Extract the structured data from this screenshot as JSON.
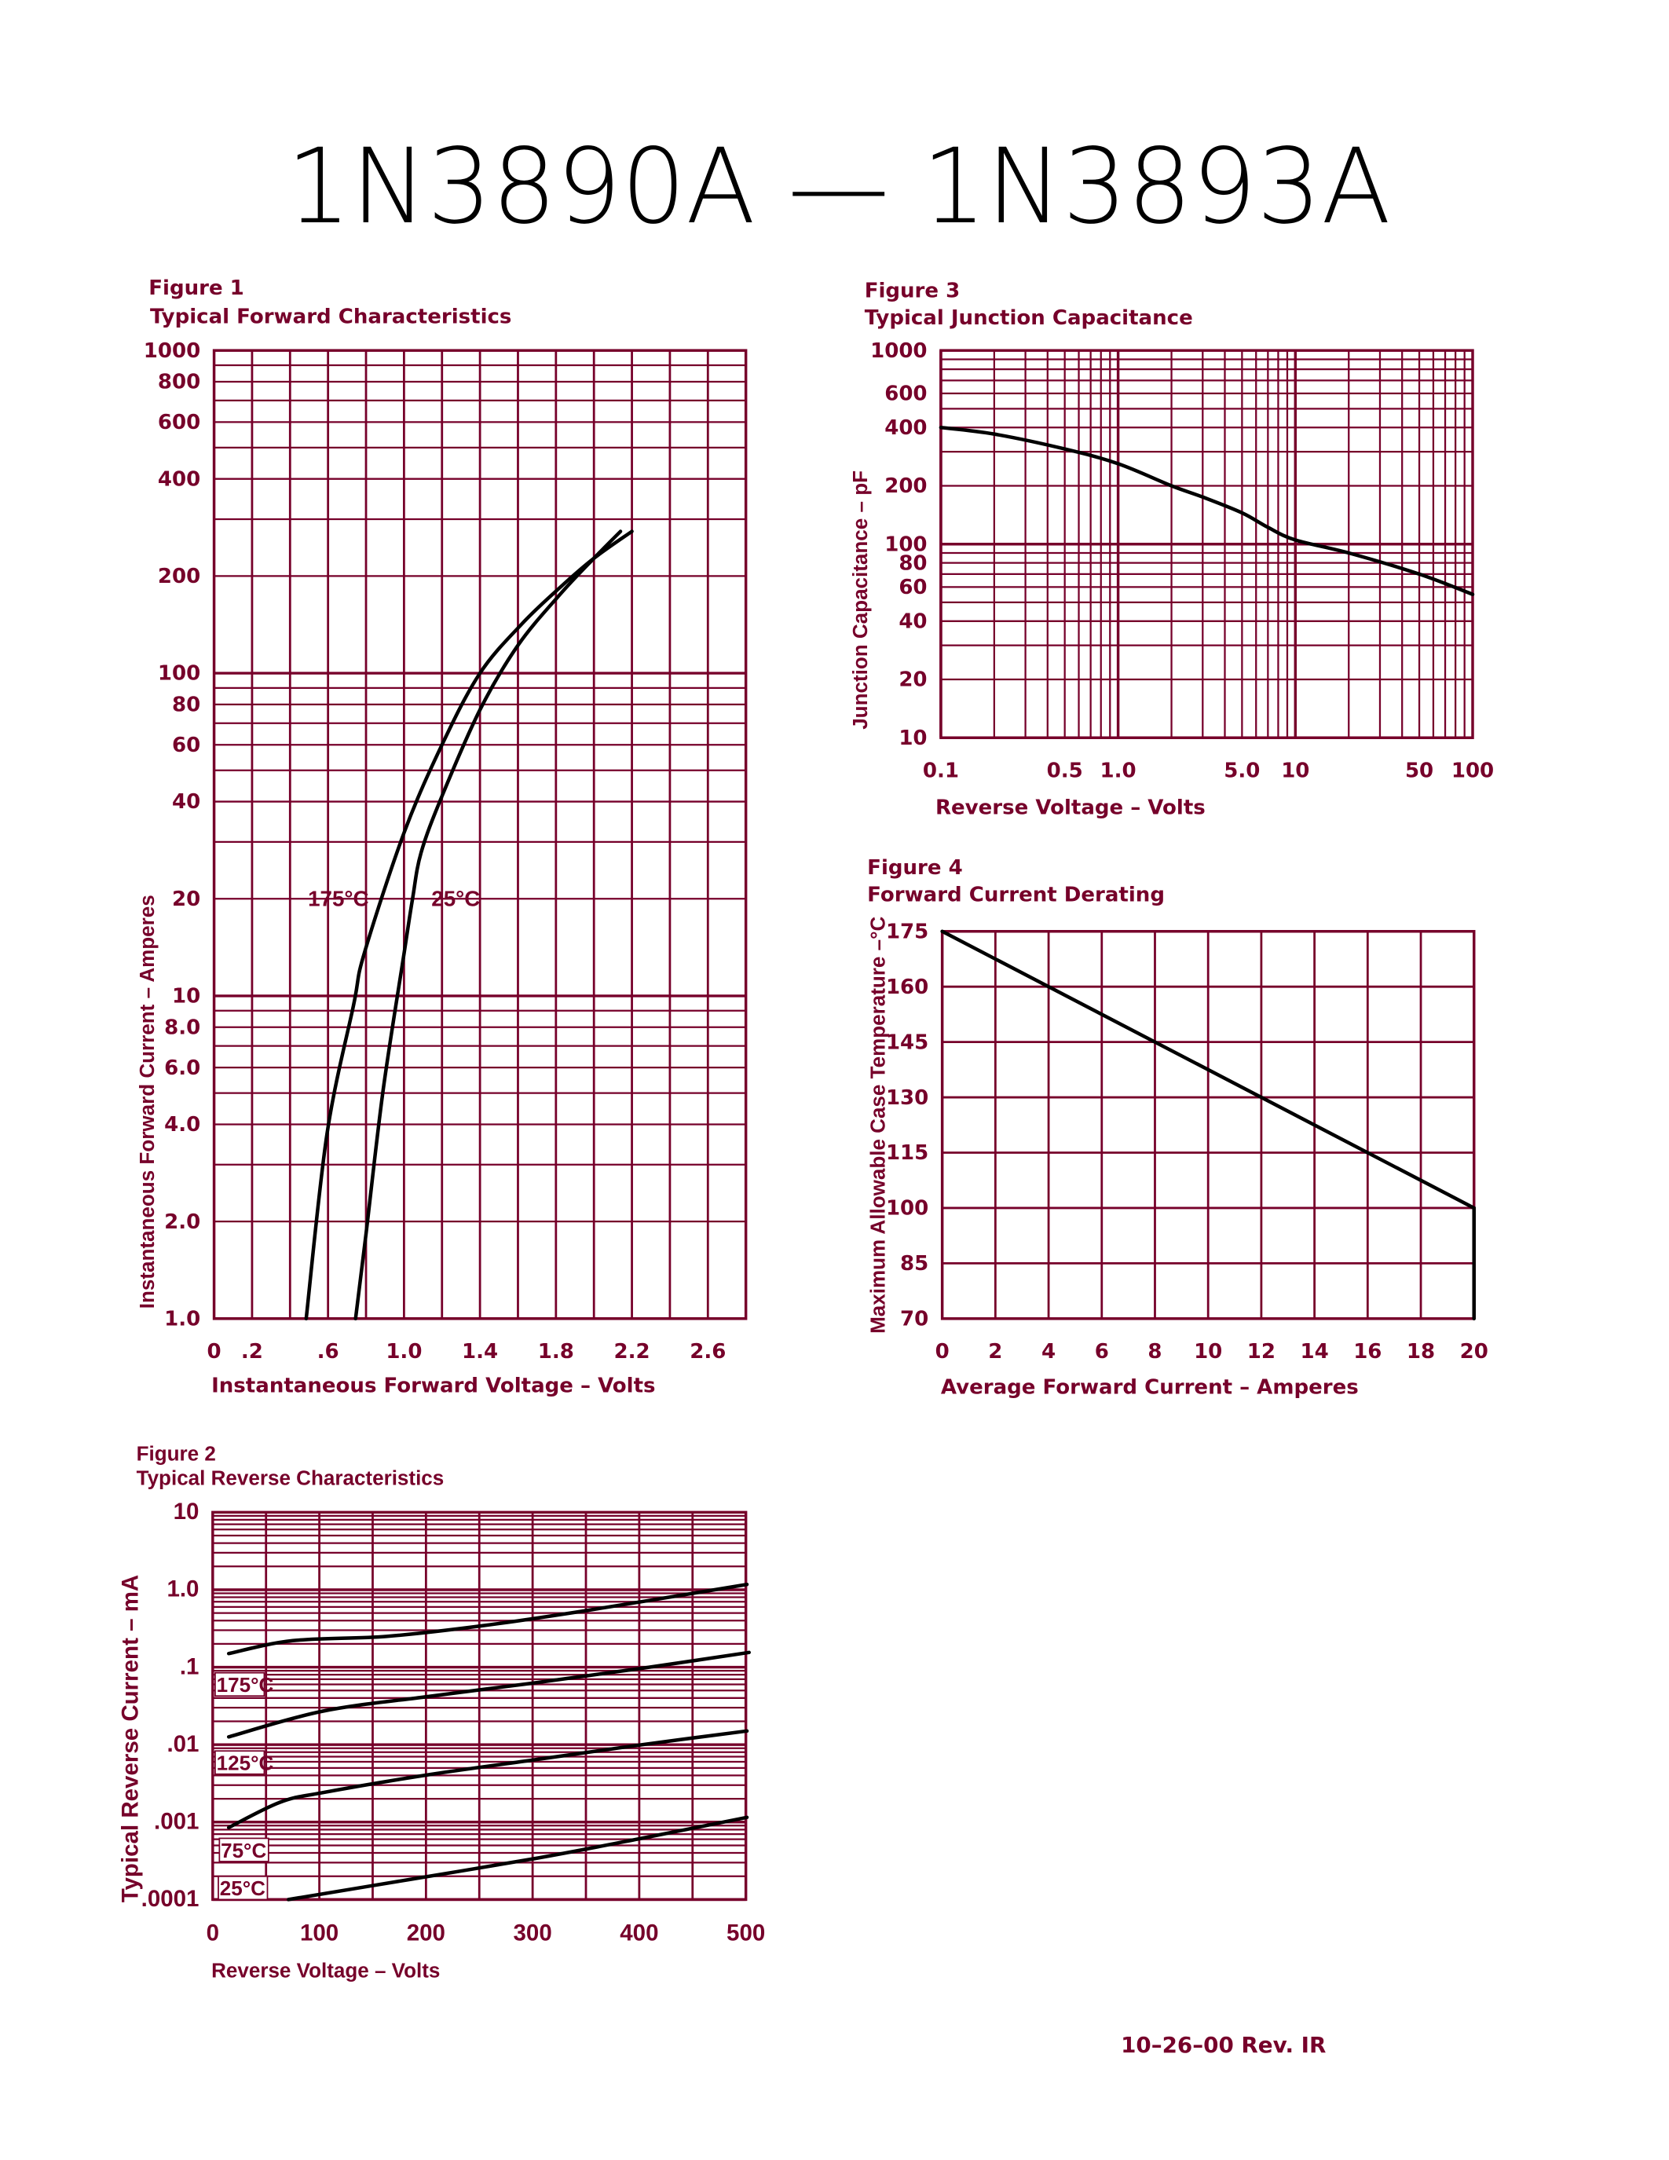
{
  "page": {
    "title": "1N3890A  —  1N3893A",
    "footer": "10–26–00    Rev. IR"
  },
  "colors": {
    "grid": "#76002a",
    "curve": "#000000",
    "text": "#76002a"
  },
  "chart_data": [
    {
      "figure_label": "Figure 1",
      "title": "Typical Forward Characteristics",
      "type": "line",
      "xlabel": "Instantaneous Forward Voltage  –  Volts",
      "ylabel": "Instantaneous Forward Current  –  Amperes",
      "xscale": "linear",
      "yscale": "log",
      "xlim": [
        0,
        2.8
      ],
      "ylim": [
        1,
        1000
      ],
      "grid": true,
      "x_ticks": [
        {
          "value": 0,
          "label": "0"
        },
        {
          "value": 0.2,
          "label": ".2"
        },
        {
          "value": 0.6,
          "label": ".6"
        },
        {
          "value": 1.0,
          "label": "1.0"
        },
        {
          "value": 1.4,
          "label": "1.4"
        },
        {
          "value": 1.8,
          "label": "1.8"
        },
        {
          "value": 2.2,
          "label": "2.2"
        },
        {
          "value": 2.6,
          "label": "2.6"
        }
      ],
      "y_ticks": [
        {
          "value": 1000,
          "label": "1000"
        },
        {
          "value": 800,
          "label": "800"
        },
        {
          "value": 600,
          "label": "600"
        },
        {
          "value": 400,
          "label": "400"
        },
        {
          "value": 200,
          "label": "200"
        },
        {
          "value": 100,
          "label": "100"
        },
        {
          "value": 80,
          "label": "80"
        },
        {
          "value": 60,
          "label": "60"
        },
        {
          "value": 40,
          "label": "40"
        },
        {
          "value": 20,
          "label": "20"
        },
        {
          "value": 10,
          "label": "10"
        },
        {
          "value": 8,
          "label": "8.0"
        },
        {
          "value": 6,
          "label": "6.0"
        },
        {
          "value": 4,
          "label": "4.0"
        },
        {
          "value": 2,
          "label": "2.0"
        },
        {
          "value": 1,
          "label": "1.0"
        }
      ],
      "series": [
        {
          "name": "175°C",
          "points": [
            [
              0.485,
              1
            ],
            [
              0.595,
              3.75
            ],
            [
              0.735,
              9.4
            ],
            [
              0.79,
              13.5
            ],
            [
              1.0,
              32
            ],
            [
              1.2,
              60
            ],
            [
              1.4,
              100
            ],
            [
              1.62,
              142
            ],
            [
              1.82,
              184
            ],
            [
              2.0,
              227
            ],
            [
              2.2,
              275
            ]
          ]
        },
        {
          "name": "25°C",
          "points": [
            [
              0.745,
              1
            ],
            [
              0.8,
              1.83
            ],
            [
              0.89,
              5.1
            ],
            [
              1.0,
              13.5
            ],
            [
              1.045,
              20
            ],
            [
              1.09,
              27.8
            ],
            [
              1.2,
              41.6
            ],
            [
              1.4,
              77
            ],
            [
              1.6,
              122
            ],
            [
              1.82,
              175
            ],
            [
              2.0,
              227
            ],
            [
              2.14,
              275
            ]
          ]
        }
      ],
      "annotations": [
        {
          "text": "175°C",
          "x": 0.48,
          "y": 19
        },
        {
          "text": "25°C",
          "x": 1.13,
          "y": 19
        }
      ]
    },
    {
      "figure_label": "Figure 2",
      "title": "Typical Reverse Characteristics",
      "type": "line",
      "xlabel": "Reverse Voltage  –  Volts",
      "ylabel": "Typical Reverse Current  –  mA",
      "xscale": "linear",
      "yscale": "log",
      "xlim": [
        0,
        500
      ],
      "ylim": [
        0.0001,
        10
      ],
      "grid": true,
      "x_ticks": [
        {
          "value": 0,
          "label": "0"
        },
        {
          "value": 100,
          "label": "100"
        },
        {
          "value": 200,
          "label": "200"
        },
        {
          "value": 300,
          "label": "300"
        },
        {
          "value": 400,
          "label": "400"
        },
        {
          "value": 500,
          "label": "500"
        }
      ],
      "y_ticks": [
        {
          "value": 10,
          "label": "10"
        },
        {
          "value": 1,
          "label": "1.0"
        },
        {
          "value": 0.1,
          "label": ".1"
        },
        {
          "value": 0.01,
          "label": ".01"
        },
        {
          "value": 0.001,
          "label": ".001"
        },
        {
          "value": 0.0001,
          "label": ".0001"
        }
      ],
      "series": [
        {
          "name": "175°C",
          "points": [
            [
              15,
              0.15
            ],
            [
              75,
              0.22
            ],
            [
              163,
              0.25
            ],
            [
              251,
              0.34
            ],
            [
              351,
              0.54
            ],
            [
              501,
              1.17
            ]
          ]
        },
        {
          "name": "125°C",
          "points": [
            [
              15,
              0.0126
            ],
            [
              103,
              0.027
            ],
            [
              203,
              0.042
            ],
            [
              303,
              0.063
            ],
            [
              403,
              0.097
            ],
            [
              503,
              0.155
            ]
          ]
        },
        {
          "name": "75°C",
          "points": [
            [
              15,
              0.00085
            ],
            [
              63,
              0.0018
            ],
            [
              103,
              0.0024
            ],
            [
              203,
              0.0041
            ],
            [
              303,
              0.0064
            ],
            [
              403,
              0.01
            ],
            [
              501,
              0.015
            ]
          ]
        },
        {
          "name": "25°C",
          "points": [
            [
              71,
              0.0001
            ],
            [
              183,
              0.00018
            ],
            [
              303,
              0.00034
            ],
            [
              403,
              0.00062
            ],
            [
              501,
              0.00115
            ]
          ]
        }
      ],
      "annotations": [
        {
          "text": "175°C",
          "x": 1,
          "y": 0.048
        },
        {
          "text": "125°C",
          "x": 1,
          "y": 0.0047
        },
        {
          "text": "75°C",
          "x": 5,
          "y": 0.00035
        },
        {
          "text": "25°C",
          "x": 4,
          "y": 0.000113
        }
      ]
    },
    {
      "figure_label": "Figure 3",
      "title": "Typical Junction Capacitance",
      "type": "line",
      "xlabel": "Reverse Voltage  –  Volts",
      "ylabel": "Junction Capacitance  –  pF",
      "xscale": "log",
      "yscale": "log",
      "xlim": [
        0.1,
        100
      ],
      "ylim": [
        10,
        1000
      ],
      "grid": true,
      "x_ticks": [
        {
          "value": 0.1,
          "label": "0.1"
        },
        {
          "value": 0.5,
          "label": "0.5"
        },
        {
          "value": 1,
          "label": "1.0"
        },
        {
          "value": 5,
          "label": "5.0"
        },
        {
          "value": 10,
          "label": "10"
        },
        {
          "value": 50,
          "label": "50"
        },
        {
          "value": 100,
          "label": "100"
        }
      ],
      "y_ticks": [
        {
          "value": 1000,
          "label": "1000"
        },
        {
          "value": 600,
          "label": "600"
        },
        {
          "value": 400,
          "label": "400"
        },
        {
          "value": 200,
          "label": "200"
        },
        {
          "value": 100,
          "label": "100"
        },
        {
          "value": 80,
          "label": "80"
        },
        {
          "value": 60,
          "label": "60"
        },
        {
          "value": 40,
          "label": "40"
        },
        {
          "value": 20,
          "label": "20"
        },
        {
          "value": 10,
          "label": "10"
        }
      ],
      "series": [
        {
          "points": [
            [
              0.1,
              400
            ],
            [
              0.2,
              370
            ],
            [
              0.5,
              310
            ],
            [
              1,
              260
            ],
            [
              2,
              200
            ],
            [
              3,
              175
            ],
            [
              5,
              145
            ],
            [
              7,
              122
            ],
            [
              10,
              105
            ],
            [
              20,
              90
            ],
            [
              50,
              70
            ],
            [
              100,
              55
            ]
          ]
        }
      ],
      "annotations": []
    },
    {
      "figure_label": "Figure 4",
      "title": "Forward Current Derating",
      "type": "line",
      "xlabel": "Average Forward Current  –  Amperes",
      "ylabel": "Maximum Allowable Case Temperature –°C",
      "xscale": "linear",
      "yscale": "linear",
      "xlim": [
        0,
        20
      ],
      "ylim": [
        70,
        175
      ],
      "grid": true,
      "x_ticks": [
        {
          "value": 0,
          "label": "0"
        },
        {
          "value": 2,
          "label": "2"
        },
        {
          "value": 4,
          "label": "4"
        },
        {
          "value": 6,
          "label": "6"
        },
        {
          "value": 8,
          "label": "8"
        },
        {
          "value": 10,
          "label": "10"
        },
        {
          "value": 12,
          "label": "12"
        },
        {
          "value": 14,
          "label": "14"
        },
        {
          "value": 16,
          "label": "16"
        },
        {
          "value": 18,
          "label": "18"
        },
        {
          "value": 20,
          "label": "20"
        }
      ],
      "y_ticks": [
        {
          "value": 175,
          "label": "175"
        },
        {
          "value": 160,
          "label": "160"
        },
        {
          "value": 145,
          "label": "145"
        },
        {
          "value": 130,
          "label": "130"
        },
        {
          "value": 115,
          "label": "115"
        },
        {
          "value": 100,
          "label": "100"
        },
        {
          "value": 85,
          "label": "85"
        },
        {
          "value": 70,
          "label": "70"
        }
      ],
      "series": [
        {
          "points": [
            [
              0,
              175
            ],
            [
              20,
              100
            ],
            [
              20,
              70
            ]
          ]
        }
      ],
      "annotations": []
    }
  ]
}
